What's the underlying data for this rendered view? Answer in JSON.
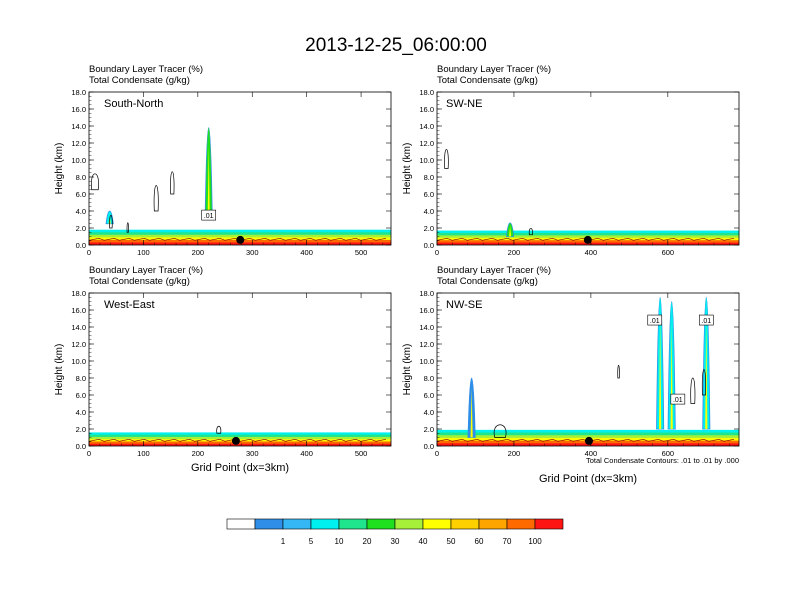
{
  "title": "2013-12-25_06:00:00",
  "panel_titles": {
    "line1": "Boundary Layer Tracer   (%)",
    "line2": "Total Condensate   (g/kg)"
  },
  "contour_note": "Total Condensate Contours: .01 to .01 by .000",
  "colorbar": {
    "colors": [
      "#ffffff",
      "#2f8ee8",
      "#35b7f5",
      "#00f0f0",
      "#1fe68c",
      "#1ee01e",
      "#a6f03a",
      "#ffff00",
      "#ffd000",
      "#ffa500",
      "#ff6a00",
      "#ff1414"
    ],
    "labels": [
      "1",
      "5",
      "10",
      "20",
      "30",
      "40",
      "50",
      "60",
      "70",
      "100"
    ]
  },
  "chart_data": [
    {
      "type": "heatmap",
      "name": "South-North",
      "xlabel": "",
      "ylabel": "Height (km)",
      "xlim": [
        0,
        555
      ],
      "ylim": [
        0,
        18
      ],
      "xticks": [
        0,
        100,
        200,
        300,
        400,
        500
      ],
      "yticks": [
        0,
        2,
        4,
        6,
        8,
        10,
        12,
        14,
        16,
        18
      ],
      "marker_x": 278,
      "contour_labels": [
        {
          "text": ".01",
          "x": 220,
          "y": 3.4
        }
      ]
    },
    {
      "type": "heatmap",
      "name": "SW-NE",
      "xlabel": "",
      "ylabel": "Height (km)",
      "xlim": [
        0,
        785
      ],
      "ylim": [
        0,
        18
      ],
      "xticks": [
        0,
        200,
        400,
        600
      ],
      "yticks": [
        0,
        2,
        4,
        6,
        8,
        10,
        12,
        14,
        16,
        18
      ],
      "marker_x": 392,
      "contour_labels": []
    },
    {
      "type": "heatmap",
      "name": "West-East",
      "xlabel": "Grid Point (dx=3km)",
      "ylabel": "Height (km)",
      "xlim": [
        0,
        555
      ],
      "ylim": [
        0,
        18
      ],
      "xticks": [
        0,
        100,
        200,
        300,
        400,
        500
      ],
      "yticks": [
        0,
        2,
        4,
        6,
        8,
        10,
        12,
        14,
        16,
        18
      ],
      "marker_x": 270,
      "contour_labels": []
    },
    {
      "type": "heatmap",
      "name": "NW-SE",
      "xlabel": "Grid Point (dx=3km)",
      "ylabel": "Height (km)",
      "xlim": [
        0,
        785
      ],
      "ylim": [
        0,
        18
      ],
      "xticks": [
        0,
        200,
        400,
        600
      ],
      "yticks": [
        0,
        2,
        4,
        6,
        8,
        10,
        12,
        14,
        16,
        18
      ],
      "marker_x": 395,
      "contour_labels": [
        {
          "text": ".01",
          "x": 566,
          "y": 14.7
        },
        {
          "text": ".01",
          "x": 700,
          "y": 14.7
        },
        {
          "text": ".01",
          "x": 626,
          "y": 5.4
        }
      ]
    }
  ]
}
